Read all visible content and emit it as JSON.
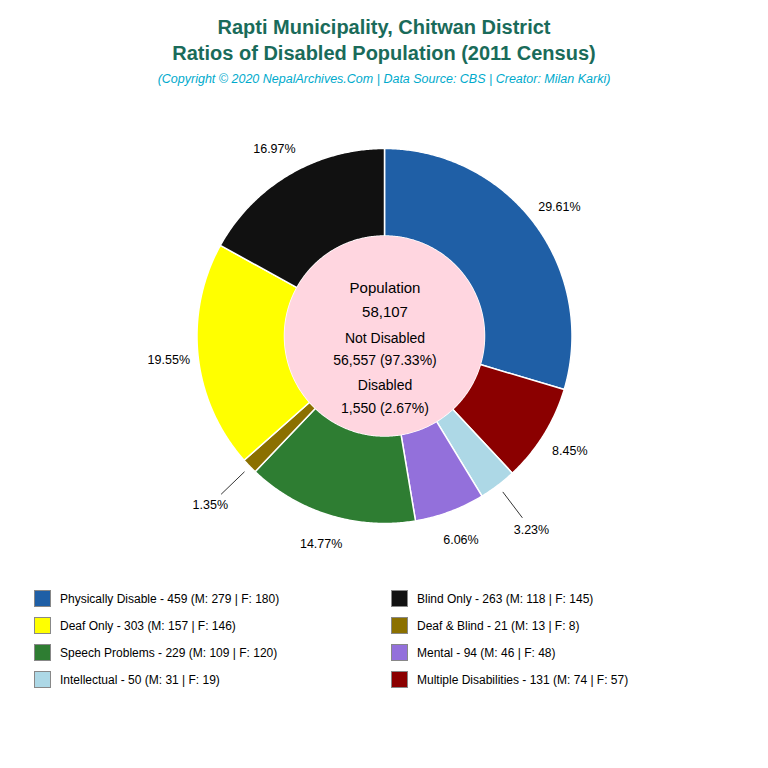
{
  "chart_data": {
    "type": "pie",
    "title": [
      "Rapti Municipality, Chitwan District",
      "Ratios of Disabled Population (2011 Census)"
    ],
    "subtitle": "(Copyright © 2020 NepalArchives.Com | Data Source: CBS | Creator: Milan Karki)",
    "categories": [
      "Physically Disable - 459 (M: 279 | F: 180)",
      "Multiple Disabilities - 131 (M: 74 | F: 57)",
      "Intellectual - 50 (M: 31 | F: 19)",
      "Mental - 94 (M: 46 | F: 48)",
      "Speech Problems - 229 (M: 109 | F: 120)",
      "Deaf & Blind - 21 (M: 13 | F: 8)",
      "Deaf Only - 303 (M: 157 | F: 146)",
      "Blind Only - 263 (M: 118 | F: 145)"
    ],
    "values": [
      29.61,
      8.45,
      3.23,
      6.06,
      14.77,
      1.35,
      19.55,
      16.97
    ],
    "value_labels": [
      "29.61%",
      "8.45%",
      "3.23%",
      "6.06%",
      "14.77%",
      "1.35%",
      "19.55%",
      "16.97%"
    ],
    "colors": [
      "#1f5fa6",
      "#8b0000",
      "#add8e6",
      "#9370db",
      "#2e7d32",
      "#8b7000",
      "#ffff00",
      "#111111"
    ],
    "data_labels": true,
    "legend": "bottom",
    "tick_labels": false,
    "annotations": [
      "Population",
      "58,107",
      "Not Disabled",
      "56,557 (97.33%)",
      "Disabled",
      "1,550 (2.67%)"
    ]
  }
}
